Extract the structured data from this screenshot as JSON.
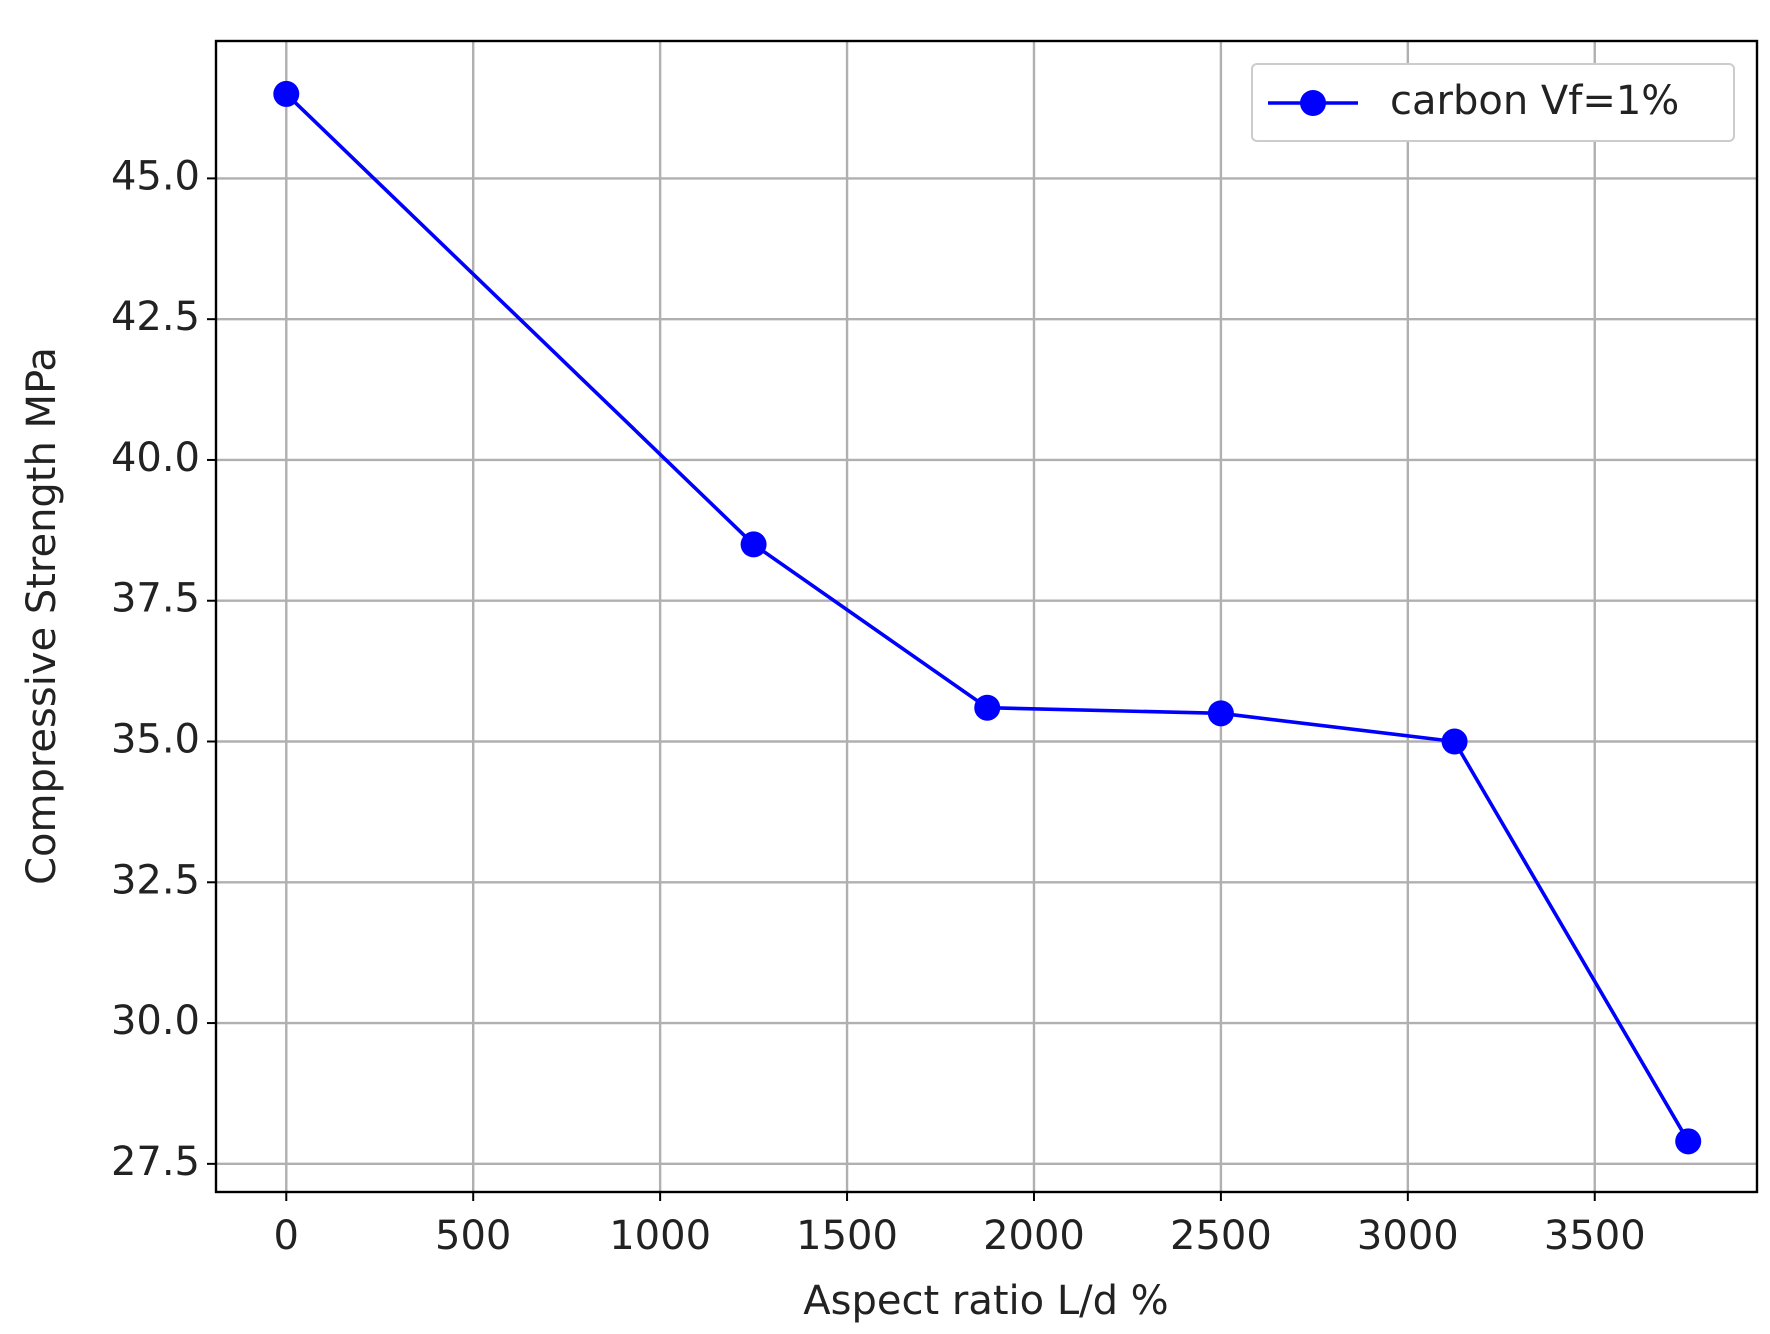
{
  "chart_data": {
    "type": "line",
    "x_label": "Aspect ratio L/d %",
    "y_label": "Compressive Strength MPa",
    "x": [
      0,
      1250,
      1875,
      2500,
      3125,
      3750
    ],
    "series": [
      {
        "name": "carbon Vf=1%",
        "color": "#0000ff",
        "values": [
          46.5,
          38.5,
          35.6,
          35.5,
          35.0,
          27.9
        ]
      }
    ],
    "xlim": [
      -188,
      3934
    ],
    "ylim": [
      27.0,
      47.44
    ],
    "xticks": [
      0,
      500,
      1000,
      1500,
      2000,
      2500,
      3000,
      3500
    ],
    "yticks": [
      27.5,
      {
        "value": 30,
        "label": "30.0"
      },
      32.5,
      {
        "value": 35,
        "label": "35.0"
      },
      37.5,
      {
        "value": 40,
        "label": "40.0"
      },
      42.5,
      {
        "value": 45,
        "label": "45.0"
      }
    ],
    "grid": true,
    "legend": "upper right"
  }
}
